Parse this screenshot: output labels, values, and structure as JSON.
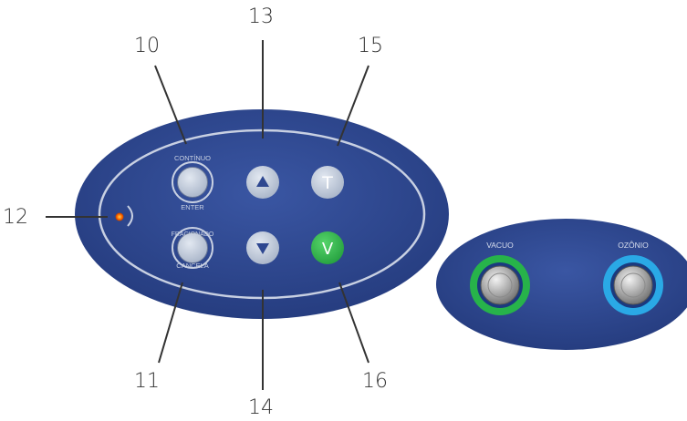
{
  "callouts": {
    "c10": "10",
    "c11": "11",
    "c12": "12",
    "c13": "13",
    "c14": "14",
    "c15": "15",
    "c16": "16"
  },
  "control_panel": {
    "continuo_label": "CONTÍNUO",
    "enter_label": "ENTER",
    "fracionado_label": "FRACIONADO",
    "cancela_label": "CANCELA",
    "t_label": "T",
    "v_label": "V",
    "up_icon": "triangle-up-icon",
    "down_icon": "triangle-down-icon",
    "led_color": "#ff6a00"
  },
  "switch_panel": {
    "vacuo_label": "VACUO",
    "ozonio_label": "OZÔNIO",
    "vacuo_ring_color": "#27b34a",
    "ozonio_ring_color": "#2aa9e6"
  },
  "colors": {
    "panel_blue": "#2e4790",
    "button_grey": "#b9c4d6",
    "v_button_green": "#2fb54a"
  }
}
